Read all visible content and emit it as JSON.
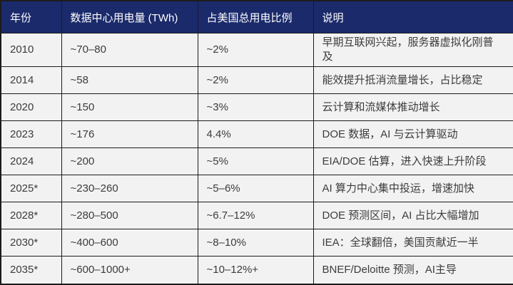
{
  "chart_data": {
    "type": "table",
    "columns": [
      "年份",
      "数据中心用电量 (TWh)",
      "占美国总用电比例",
      "说明"
    ],
    "rows": [
      {
        "year": "2010",
        "consumption": "~70–80",
        "share": "~2%",
        "note": "早期互联网兴起，服务器虚拟化刚普及"
      },
      {
        "year": "2014",
        "consumption": "~58",
        "share": "~2%",
        "note": "能效提升抵消流量增长，占比稳定"
      },
      {
        "year": "2020",
        "consumption": "~150",
        "share": "~3%",
        "note": "云计算和流媒体推动增长"
      },
      {
        "year": "2023",
        "consumption": "~176",
        "share": "4.4%",
        "note": "DOE 数据，AI 与云计算驱动"
      },
      {
        "year": "2024",
        "consumption": "~200",
        "share": "~5%",
        "note": "EIA/DOE 估算，进入快速上升阶段"
      },
      {
        "year": "2025*",
        "consumption": "~230–260",
        "share": "~5–6%",
        "note": "AI 算力中心集中投运，增速加快"
      },
      {
        "year": "2028*",
        "consumption": "~280–500",
        "share": "~6.7–12%",
        "note": "DOE 预测区间，AI 占比大幅增加"
      },
      {
        "year": "2030*",
        "consumption": "~400–600",
        "share": "~8–10%",
        "note": "IEA：全球翻倍，美国贡献近一半"
      },
      {
        "year": "2035*",
        "consumption": "~600–1000+",
        "share": "~10–12%+",
        "note": "BNEF/Deloitte 预测，AI主导"
      }
    ]
  },
  "colors": {
    "header_bg": "#1b2a6b",
    "header_text": "#ffffff",
    "row_bg": "#f2f2f2",
    "body_text": "#3c3c3c",
    "border": "#1c1c1c"
  }
}
